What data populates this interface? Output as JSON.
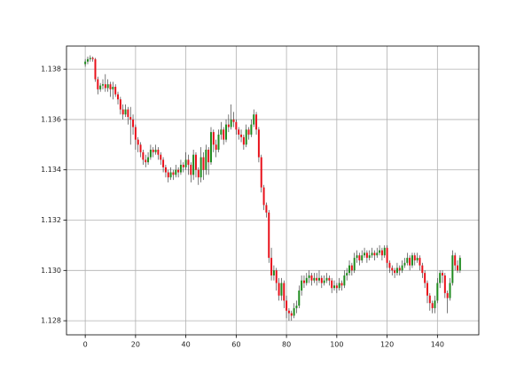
{
  "chart_data": {
    "type": "candlestick",
    "up_color": "#1f8b1f",
    "down_color": "#e8101a",
    "wick_color": "#222222",
    "grid": true,
    "xlim": [
      -7.45,
      156.45
    ],
    "xticks": [
      0,
      20,
      40,
      60,
      80,
      100,
      120,
      140
    ],
    "ylim": [
      1.12744,
      1.13892
    ],
    "yticks": [
      1.128,
      {
        "value": 1.13,
        "label": "1.130"
      },
      1.132,
      1.134,
      1.136,
      1.138
    ],
    "x": [
      0,
      1,
      2,
      3,
      4,
      5,
      6,
      7,
      8,
      9,
      10,
      11,
      12,
      13,
      14,
      15,
      16,
      17,
      18,
      19,
      20,
      21,
      22,
      23,
      24,
      25,
      26,
      27,
      28,
      29,
      30,
      31,
      32,
      33,
      34,
      35,
      36,
      37,
      38,
      39,
      40,
      41,
      42,
      43,
      44,
      45,
      46,
      47,
      48,
      49,
      50,
      51,
      52,
      53,
      54,
      55,
      56,
      57,
      58,
      59,
      60,
      61,
      62,
      63,
      64,
      65,
      66,
      67,
      68,
      69,
      70,
      71,
      72,
      73,
      74,
      75,
      76,
      77,
      78,
      79,
      80,
      81,
      82,
      83,
      84,
      85,
      86,
      87,
      88,
      89,
      90,
      91,
      92,
      93,
      94,
      95,
      96,
      97,
      98,
      99,
      100,
      101,
      102,
      103,
      104,
      105,
      106,
      107,
      108,
      109,
      110,
      111,
      112,
      113,
      114,
      115,
      116,
      117,
      118,
      119,
      120,
      121,
      122,
      123,
      124,
      125,
      126,
      127,
      128,
      129,
      130,
      131,
      132,
      133,
      134,
      135,
      136,
      137,
      138,
      139,
      140,
      141,
      142,
      143,
      144,
      145,
      146,
      147,
      148,
      149
    ],
    "open": [
      1.1382,
      1.1383,
      1.1384,
      1.13845,
      1.1384,
      1.1376,
      1.1372,
      1.13735,
      1.1374,
      1.13725,
      1.1374,
      1.1372,
      1.1373,
      1.137,
      1.1368,
      1.1364,
      1.1362,
      1.1364,
      1.1361,
      1.136,
      1.1357,
      1.1352,
      1.135,
      1.1347,
      1.1344,
      1.1343,
      1.1345,
      1.1348,
      1.1347,
      1.1348,
      1.1346,
      1.1344,
      1.1341,
      1.1339,
      1.1337,
      1.1339,
      1.1338,
      1.134,
      1.1339,
      1.1342,
      1.1341,
      1.1344,
      1.1342,
      1.1338,
      1.1346,
      1.134,
      1.1337,
      1.1345,
      1.134,
      1.1348,
      1.1343,
      1.1355,
      1.135,
      1.1348,
      1.1354,
      1.1356,
      1.1352,
      1.1358,
      1.1357,
      1.136,
      1.1359,
      1.1356,
      1.1354,
      1.1353,
      1.135,
      1.1356,
      1.1354,
      1.1358,
      1.1362,
      1.1356,
      1.1345,
      1.1333,
      1.1326,
      1.1323,
      1.1305,
      1.1298,
      1.13,
      1.1295,
      1.129,
      1.1295,
      1.1288,
      1.1284,
      1.1283,
      1.1282,
      1.1285,
      1.1286,
      1.1292,
      1.1296,
      1.1295,
      1.1297,
      1.1298,
      1.1296,
      1.1297,
      1.1296,
      1.1297,
      1.1295,
      1.1296,
      1.1297,
      1.1296,
      1.1293,
      1.1294,
      1.1293,
      1.1295,
      1.1294,
      1.1298,
      1.1299,
      1.1302,
      1.13,
      1.1305,
      1.1306,
      1.1304,
      1.1306,
      1.1307,
      1.1305,
      1.1306,
      1.1307,
      1.1306,
      1.1307,
      1.1308,
      1.1306,
      1.1309,
      1.1303,
      1.1301,
      1.13,
      1.1299,
      1.1301,
      1.13,
      1.1302,
      1.1303,
      1.1305,
      1.1302,
      1.1306,
      1.1304,
      1.1305,
      1.1302,
      1.1299,
      1.1295,
      1.129,
      1.1287,
      1.1285,
      1.1288,
      1.1295,
      1.1299,
      1.1298,
      1.1291,
      1.1289,
      1.1295,
      1.1306,
      1.1302,
      1.13
    ],
    "high": [
      1.1384,
      1.1385,
      1.13855,
      1.1385,
      1.13845,
      1.1377,
      1.13745,
      1.1376,
      1.1378,
      1.1376,
      1.1375,
      1.1375,
      1.1374,
      1.1371,
      1.1369,
      1.1366,
      1.1366,
      1.1365,
      1.1365,
      1.1362,
      1.1358,
      1.1353,
      1.1351,
      1.1348,
      1.1346,
      1.1347,
      1.135,
      1.1349,
      1.135,
      1.1349,
      1.1347,
      1.1345,
      1.1342,
      1.134,
      1.1341,
      1.134,
      1.1342,
      1.1341,
      1.1344,
      1.1343,
      1.1347,
      1.1346,
      1.1343,
      1.1348,
      1.1347,
      1.1341,
      1.1349,
      1.1347,
      1.135,
      1.1349,
      1.1357,
      1.1356,
      1.1352,
      1.1356,
      1.1359,
      1.1357,
      1.136,
      1.1362,
      1.1366,
      1.1363,
      1.136,
      1.1357,
      1.1356,
      1.1354,
      1.1358,
      1.1357,
      1.136,
      1.1364,
      1.1363,
      1.1357,
      1.1346,
      1.1334,
      1.1327,
      1.1324,
      1.1309,
      1.1302,
      1.1301,
      1.1297,
      1.1297,
      1.1296,
      1.129,
      1.1285,
      1.1284,
      1.1287,
      1.1288,
      1.1294,
      1.1298,
      1.1298,
      1.1299,
      1.13,
      1.1299,
      1.1299,
      1.1299,
      1.13,
      1.1298,
      1.1298,
      1.1299,
      1.1298,
      1.1297,
      1.1296,
      1.1295,
      1.1297,
      1.1296,
      1.13,
      1.1301,
      1.1304,
      1.1303,
      1.1307,
      1.1308,
      1.1307,
      1.1308,
      1.1309,
      1.1308,
      1.1308,
      1.1309,
      1.1308,
      1.1309,
      1.131,
      1.1309,
      1.131,
      1.131,
      1.1304,
      1.1302,
      1.1301,
      1.1303,
      1.1302,
      1.1304,
      1.1305,
      1.1307,
      1.1306,
      1.1307,
      1.1307,
      1.1307,
      1.1306,
      1.1303,
      1.13,
      1.1296,
      1.1291,
      1.1288,
      1.129,
      1.1297,
      1.13,
      1.13,
      1.1299,
      1.1292,
      1.1297,
      1.1308,
      1.1307,
      1.1304,
      1.1306
    ],
    "low": [
      1.1381,
      1.1382,
      1.1383,
      1.1383,
      1.1375,
      1.137,
      1.1371,
      1.1372,
      1.1371,
      1.1371,
      1.1369,
      1.1368,
      1.1369,
      1.1366,
      1.1362,
      1.136,
      1.1361,
      1.1358,
      1.135,
      1.1354,
      1.1348,
      1.1347,
      1.1345,
      1.1342,
      1.1341,
      1.1342,
      1.1344,
      1.1345,
      1.1346,
      1.1344,
      1.1342,
      1.1339,
      1.1337,
      1.1335,
      1.1336,
      1.1336,
      1.1337,
      1.1337,
      1.1338,
      1.1339,
      1.134,
      1.1338,
      1.1335,
      1.1336,
      1.1337,
      1.1334,
      1.1335,
      1.1336,
      1.1338,
      1.1338,
      1.1342,
      1.1347,
      1.1345,
      1.1347,
      1.1352,
      1.135,
      1.1351,
      1.1355,
      1.1356,
      1.1357,
      1.1354,
      1.1352,
      1.1351,
      1.1348,
      1.1349,
      1.1352,
      1.1353,
      1.1357,
      1.1354,
      1.1343,
      1.1331,
      1.1324,
      1.1321,
      1.1303,
      1.1296,
      1.1296,
      1.1292,
      1.1288,
      1.1288,
      1.1285,
      1.1281,
      1.128,
      1.128,
      1.1281,
      1.1283,
      1.1285,
      1.129,
      1.1293,
      1.1294,
      1.1295,
      1.1294,
      1.1295,
      1.1294,
      1.1295,
      1.1293,
      1.1294,
      1.1295,
      1.1294,
      1.1291,
      1.1292,
      1.1291,
      1.1292,
      1.1292,
      1.1293,
      1.1296,
      1.1298,
      1.1298,
      1.1299,
      1.1303,
      1.1302,
      1.1303,
      1.1305,
      1.1303,
      1.1304,
      1.1305,
      1.1304,
      1.1305,
      1.1306,
      1.1304,
      1.1305,
      1.1301,
      1.1299,
      1.1298,
      1.1297,
      1.1298,
      1.1298,
      1.1299,
      1.1301,
      1.1302,
      1.13,
      1.1301,
      1.1302,
      1.1303,
      1.13,
      1.1297,
      1.1293,
      1.1287,
      1.1284,
      1.1283,
      1.1283,
      1.1287,
      1.1293,
      1.1295,
      1.1289,
      1.1283,
      1.1288,
      1.1294,
      1.13,
      1.1299,
      1.1299
    ],
    "close": [
      1.1383,
      1.1384,
      1.13845,
      1.1384,
      1.1376,
      1.1372,
      1.13735,
      1.1374,
      1.13725,
      1.1374,
      1.1372,
      1.1373,
      1.137,
      1.1368,
      1.1364,
      1.1362,
      1.1364,
      1.1361,
      1.136,
      1.1357,
      1.1352,
      1.135,
      1.1347,
      1.1344,
      1.1343,
      1.1345,
      1.1348,
      1.1347,
      1.1348,
      1.1346,
      1.1344,
      1.1341,
      1.1339,
      1.1337,
      1.1339,
      1.1338,
      1.134,
      1.1339,
      1.1342,
      1.1341,
      1.1344,
      1.1342,
      1.1338,
      1.1346,
      1.134,
      1.1337,
      1.1345,
      1.134,
      1.1348,
      1.1343,
      1.1355,
      1.135,
      1.1348,
      1.1354,
      1.1356,
      1.1352,
      1.1358,
      1.1357,
      1.136,
      1.1359,
      1.1356,
      1.1354,
      1.1353,
      1.135,
      1.1356,
      1.1354,
      1.1358,
      1.1362,
      1.1356,
      1.1345,
      1.1333,
      1.1326,
      1.1323,
      1.1305,
      1.1298,
      1.13,
      1.1295,
      1.129,
      1.1295,
      1.1288,
      1.1284,
      1.1283,
      1.1282,
      1.1285,
      1.1286,
      1.1292,
      1.1296,
      1.1295,
      1.1297,
      1.1298,
      1.1296,
      1.1297,
      1.1296,
      1.1297,
      1.1295,
      1.1296,
      1.1297,
      1.1296,
      1.1293,
      1.1294,
      1.1293,
      1.1295,
      1.1294,
      1.1298,
      1.1299,
      1.1302,
      1.13,
      1.1305,
      1.1306,
      1.1304,
      1.1306,
      1.1307,
      1.1305,
      1.1306,
      1.1307,
      1.1306,
      1.1307,
      1.1308,
      1.1306,
      1.1309,
      1.1303,
      1.1301,
      1.13,
      1.1299,
      1.1301,
      1.13,
      1.1302,
      1.1303,
      1.1305,
      1.1302,
      1.1306,
      1.1304,
      1.1305,
      1.1302,
      1.1299,
      1.1295,
      1.129,
      1.1287,
      1.1285,
      1.1288,
      1.1295,
      1.1299,
      1.1298,
      1.1291,
      1.1289,
      1.1295,
      1.1306,
      1.1302,
      1.13,
      1.1305
    ]
  }
}
